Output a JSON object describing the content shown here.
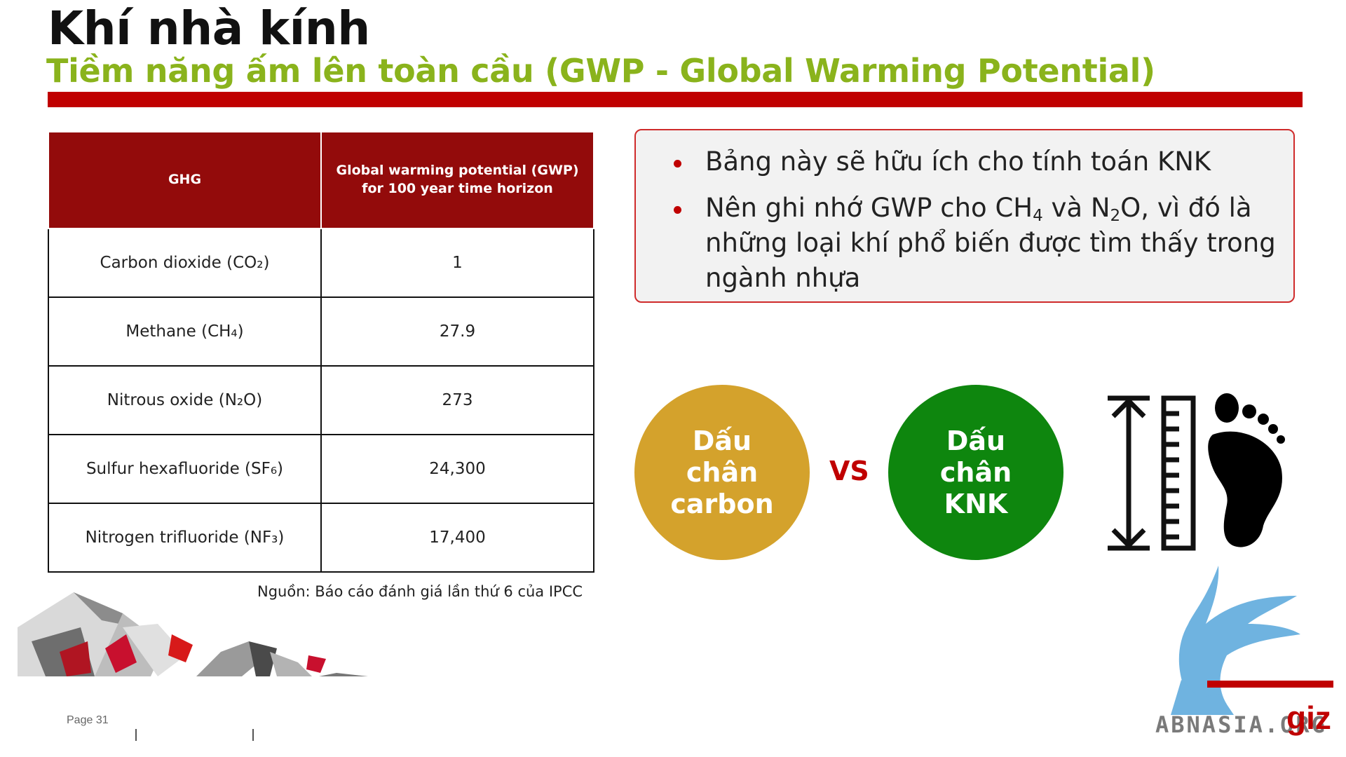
{
  "title": "Khí nhà kính",
  "subtitle": "Tiềm năng ấm lên toàn cầu (GWP - Global Warming Potential)",
  "table": {
    "headers": [
      "GHG",
      "Global warming potential (GWP) for 100 year time horizon"
    ],
    "rows": [
      {
        "gas": "Carbon dioxide (CO₂)",
        "gwp": "1"
      },
      {
        "gas": "Methane (CH₄)",
        "gwp": "27.9"
      },
      {
        "gas": "Nitrous oxide (N₂O)",
        "gwp": "273"
      },
      {
        "gas": "Sulfur hexafluoride (SF₆)",
        "gwp": "24,300"
      },
      {
        "gas": "Nitrogen trifluoride (NF₃)",
        "gwp": "17,400"
      }
    ]
  },
  "source": "Nguồn: Báo cáo đánh giá lần thứ 6 của IPCC",
  "notes": {
    "bullet1": "Bảng này sẽ hữu ích cho tính toán KNK",
    "bullet2_a": "Nên ghi nhớ GWP cho CH",
    "bullet2_sub1": "4",
    "bullet2_b": " và N",
    "bullet2_sub2": "2",
    "bullet2_c": "O, vì đó là những loại khí phổ biến được tìm thấy trong ngành nhựa"
  },
  "circles": {
    "left": "Dấu chân carbon",
    "vs": "VS",
    "right": "Dấu chân KNK"
  },
  "colors": {
    "accent_red": "#c00000",
    "header_red": "#930b0b",
    "subtitle_green": "#8ab31c",
    "circle_gold": "#d4a22c",
    "circle_green": "#0e860e"
  },
  "icons": [
    "height-measure-icon",
    "footprint-icon"
  ],
  "footer": {
    "page": "Page 31",
    "brand": "ABNASIA.ORG",
    "logo": "giz"
  }
}
